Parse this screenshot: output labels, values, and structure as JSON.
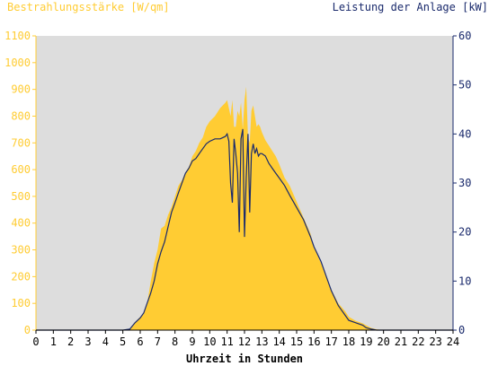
{
  "chart_data": {
    "type": "area",
    "title": "",
    "ylabel_left": "Bestrahlungsstärke [W/qm]",
    "ylabel_right": "Leistung der Anlage [kW]",
    "xlabel": "Uhrzeit in Stunden",
    "xlim": [
      0,
      24
    ],
    "ylim_left": [
      0,
      1100
    ],
    "ylim_right": [
      0,
      60
    ],
    "x_ticks": [
      "0",
      "1",
      "2",
      "3",
      "4",
      "5",
      "6",
      "7",
      "8",
      "9",
      "10",
      "11",
      "12",
      "13",
      "14",
      "15",
      "16",
      "17",
      "18",
      "19",
      "20",
      "21",
      "22",
      "23",
      "24"
    ],
    "y_ticks_left": [
      "0",
      "100",
      "200",
      "300",
      "400",
      "500",
      "600",
      "700",
      "800",
      "900",
      "1000",
      "1100"
    ],
    "y_ticks_right": [
      "0",
      "10",
      "20",
      "30",
      "40",
      "50",
      "60"
    ],
    "grid": false,
    "colors": {
      "irradiance": "#ffcc33",
      "power": "#1a2a6c",
      "plot_bg": "#dddddd",
      "left_axis_text": "#ffcc33",
      "right_axis_text": "#1a2a6c"
    },
    "series": [
      {
        "name": "Bestrahlungsstärke [W/qm]",
        "axis": "left",
        "x": [
          0,
          5.0,
          5.4,
          5.7,
          6.0,
          6.2,
          6.4,
          6.6,
          6.8,
          7.0,
          7.2,
          7.4,
          7.6,
          7.8,
          8.0,
          8.2,
          8.4,
          8.6,
          8.8,
          9.0,
          9.2,
          9.4,
          9.6,
          9.8,
          10.0,
          10.3,
          10.6,
          10.9,
          11.0,
          11.1,
          11.2,
          11.3,
          11.4,
          11.5,
          11.6,
          11.7,
          11.8,
          11.9,
          12.0,
          12.1,
          12.2,
          12.3,
          12.4,
          12.5,
          12.6,
          12.7,
          12.8,
          12.9,
          13.0,
          13.2,
          13.4,
          13.6,
          13.8,
          14.0,
          14.3,
          14.6,
          15.0,
          15.4,
          15.8,
          16.0,
          16.4,
          16.8,
          17.0,
          17.4,
          17.8,
          18.0,
          18.4,
          18.8,
          19.0,
          19.3,
          19.6,
          20.0,
          24
        ],
        "values": [
          0,
          0,
          5,
          30,
          50,
          60,
          100,
          180,
          250,
          300,
          380,
          390,
          430,
          460,
          500,
          540,
          560,
          590,
          610,
          650,
          670,
          700,
          720,
          760,
          780,
          800,
          830,
          850,
          860,
          830,
          800,
          860,
          760,
          760,
          820,
          800,
          850,
          750,
          860,
          910,
          720,
          700,
          820,
          840,
          800,
          760,
          770,
          760,
          740,
          710,
          690,
          670,
          650,
          620,
          570,
          540,
          480,
          420,
          360,
          310,
          250,
          180,
          150,
          100,
          70,
          50,
          35,
          25,
          18,
          8,
          3,
          0,
          0
        ]
      },
      {
        "name": "Leistung der Anlage [kW]",
        "axis": "right",
        "x": [
          0,
          5.0,
          5.4,
          5.7,
          6.0,
          6.2,
          6.4,
          6.6,
          6.8,
          7.0,
          7.2,
          7.4,
          7.6,
          7.8,
          8.0,
          8.2,
          8.4,
          8.6,
          8.8,
          9.0,
          9.2,
          9.4,
          9.6,
          9.8,
          10.0,
          10.3,
          10.6,
          10.9,
          11.0,
          11.1,
          11.2,
          11.3,
          11.4,
          11.5,
          11.6,
          11.7,
          11.8,
          11.9,
          12.0,
          12.1,
          12.2,
          12.3,
          12.4,
          12.5,
          12.6,
          12.7,
          12.8,
          12.9,
          13.0,
          13.2,
          13.4,
          13.6,
          13.8,
          14.0,
          14.3,
          14.6,
          15.0,
          15.4,
          15.8,
          16.0,
          16.4,
          16.8,
          17.0,
          17.4,
          17.8,
          18.0,
          18.4,
          18.8,
          19.0,
          19.3,
          19.6,
          20.0,
          24
        ],
        "values": [
          0,
          0,
          0.2,
          1.5,
          2.5,
          3.5,
          5.5,
          7.5,
          10,
          13.5,
          16,
          18,
          21,
          24,
          26,
          28,
          30,
          32,
          33,
          34.5,
          35,
          36,
          37,
          38,
          38.5,
          39,
          39,
          39.5,
          40,
          38.5,
          30,
          26,
          39,
          36,
          32,
          20,
          39,
          41,
          19,
          31,
          40,
          24,
          36,
          38,
          36,
          37,
          35.5,
          36,
          36,
          35.5,
          34,
          33,
          32,
          31,
          29.5,
          27.5,
          25,
          22.5,
          19,
          17,
          14,
          10,
          8,
          5,
          3,
          2,
          1.5,
          1,
          0.5,
          0.2,
          0,
          0,
          0
        ]
      }
    ]
  }
}
